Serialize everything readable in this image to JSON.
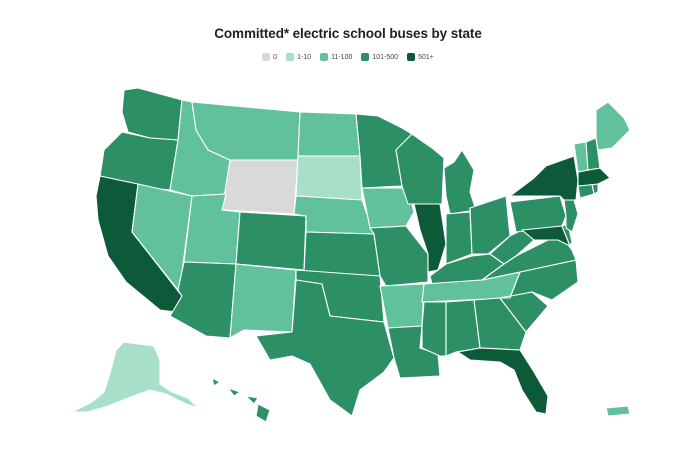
{
  "title": "Committed* electric school buses by state",
  "legend": [
    {
      "label": "0",
      "color": "#d9d9d9"
    },
    {
      "label": "1-10",
      "color": "#a8dfc9"
    },
    {
      "label": "11-100",
      "color": "#62c19d"
    },
    {
      "label": "101-500",
      "color": "#2d8f66"
    },
    {
      "label": "501+",
      "color": "#0c5a39"
    }
  ],
  "states": {
    "WA": "101-500",
    "OR": "101-500",
    "CA": "501+",
    "NV": "11-100",
    "ID": "11-100",
    "MT": "11-100",
    "WY": "0",
    "UT": "11-100",
    "CO": "101-500",
    "AZ": "101-500",
    "NM": "11-100",
    "ND": "11-100",
    "SD": "1-10",
    "NE": "11-100",
    "KS": "101-500",
    "OK": "101-500",
    "TX": "101-500",
    "MN": "101-500",
    "IA": "11-100",
    "MO": "101-500",
    "AR": "11-100",
    "LA": "101-500",
    "WI": "101-500",
    "IL": "501+",
    "MI": "101-500",
    "IN": "101-500",
    "OH": "101-500",
    "KY": "101-500",
    "TN": "11-100",
    "MS": "101-500",
    "AL": "101-500",
    "GA": "101-500",
    "FL": "501+",
    "SC": "101-500",
    "NC": "101-500",
    "VA": "101-500",
    "WV": "101-500",
    "MD": "501+",
    "DE": "101-500",
    "PA": "101-500",
    "NJ": "101-500",
    "NY": "501+",
    "CT": "101-500",
    "RI": "101-500",
    "MA": "501+",
    "VT": "11-100",
    "NH": "101-500",
    "ME": "11-100",
    "AK": "1-10",
    "HI": "101-500",
    "PR": "11-100"
  }
}
